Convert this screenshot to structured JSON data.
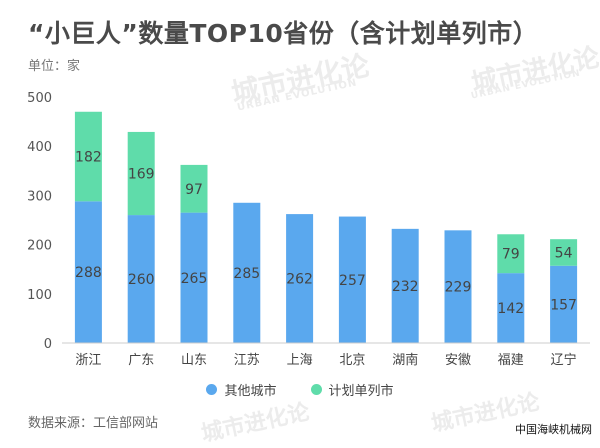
{
  "title": "“小巨人”数量TOP10省份（含计划单列市）",
  "unit_label": "单位：家",
  "watermark": {
    "text": "城市进化论",
    "sub": "URBAN EVOLUTION"
  },
  "source": "数据来源：工信部网站",
  "credit": "中国海峡机械网",
  "colors": {
    "other": "#5aa8ee",
    "plan": "#5fdcaa",
    "axis": "#cccccc"
  },
  "chart_data": {
    "type": "bar",
    "stacked": true,
    "title": "“小巨人”数量TOP10省份（含计划单列市）",
    "ylabel": "单位：家",
    "ylim": [
      0,
      500
    ],
    "yticks": [
      0,
      100,
      200,
      300,
      400,
      500
    ],
    "grid": false,
    "legend_position": "bottom",
    "categories": [
      "浙江",
      "广东",
      "山东",
      "江苏",
      "上海",
      "北京",
      "湖南",
      "安徽",
      "福建",
      "辽宁"
    ],
    "series": [
      {
        "name": "其他城市",
        "color": "#5aa8ee",
        "values": [
          288,
          260,
          265,
          285,
          262,
          257,
          232,
          229,
          142,
          157
        ],
        "labels": [
          "288",
          "260",
          "265",
          "285",
          "262",
          "257",
          "232",
          "229",
          "142",
          "157"
        ]
      },
      {
        "name": "计划单列市",
        "color": "#5fdcaa",
        "values": [
          182,
          169,
          97,
          0,
          0,
          0,
          0,
          0,
          79,
          54
        ],
        "labels": [
          "182",
          "169",
          "97",
          "",
          "",
          "",
          "",
          "",
          "79",
          "54"
        ]
      }
    ]
  }
}
